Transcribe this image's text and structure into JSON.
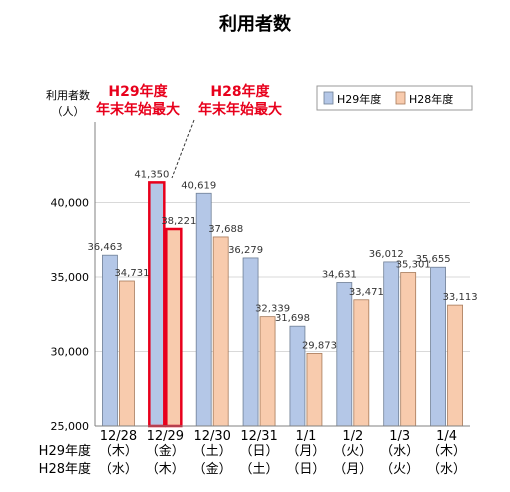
{
  "chart_data": {
    "type": "bar",
    "title": "利用者数",
    "ylabel_line1": "利用者数",
    "ylabel_line2": "（人）",
    "ylim": [
      25000,
      45000
    ],
    "yticks": [
      25000,
      30000,
      35000,
      40000
    ],
    "ytick_labels": [
      "25,000",
      "30,000",
      "35,000",
      "40,000"
    ],
    "categories": [
      "12/28",
      "12/29",
      "12/30",
      "12/31",
      "1/1",
      "1/2",
      "1/3",
      "1/4"
    ],
    "series": [
      {
        "name": "H29年度",
        "color": "#b4c7e7",
        "values": [
          36463,
          41350,
          40619,
          36279,
          31698,
          34631,
          36012,
          35655
        ],
        "labels": [
          "36,463",
          "41,350",
          "40,619",
          "36,279",
          "31,698",
          "34,631",
          "36,012",
          "35,655"
        ]
      },
      {
        "name": "H28年度",
        "color": "#f8cbad",
        "values": [
          34731,
          38221,
          37688,
          32339,
          29873,
          33471,
          35301,
          33113
        ],
        "labels": [
          "34,731",
          "38,221",
          "37,688",
          "32,339",
          "29,873",
          "33,471",
          "35,301",
          "33,113"
        ]
      }
    ],
    "highlight_category_index": 1,
    "highlight_color": "#e8001c",
    "day_row_labels": [
      "H29年度",
      "H28年度"
    ],
    "weekday_h29": [
      "（木）",
      "（金）",
      "（土）",
      "（日）",
      "（月）",
      "（火）",
      "（水）",
      "（木）"
    ],
    "weekday_h28": [
      "（水）",
      "（木）",
      "（金）",
      "（土）",
      "（日）",
      "（月）",
      "（火）",
      "（水）"
    ],
    "weekday_h29_red": [
      false,
      false,
      true,
      true,
      true,
      false,
      false,
      false
    ],
    "weekday_h28_red": [
      false,
      false,
      false,
      true,
      true,
      true,
      false,
      false
    ],
    "annotations": [
      {
        "line1": "H29年度",
        "line2": "年末年始最大"
      },
      {
        "line1": "H28年度",
        "line2": "年末年始最大"
      }
    ],
    "legend_position": "top-right",
    "grid": true
  }
}
